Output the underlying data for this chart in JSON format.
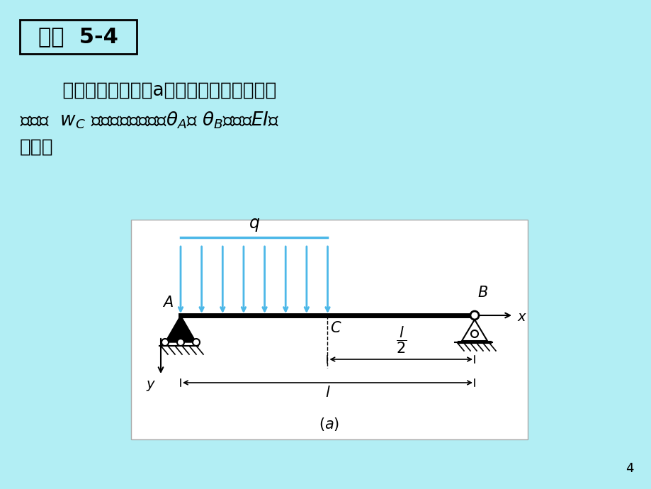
{
  "bg_color": "#b2eef4",
  "slide_bg": "#b2eef4",
  "box_color": "#b2eef4",
  "title_text": "例题  5-4",
  "title_fontsize": 22,
  "body_line1": "    试按叠加原理求图a所示简支梁的跨中截面",
  "body_line2": "的挠度  $w_C$ 和两端截面的转角$\\theta_A$及 $\\theta_B$。已知$EI$为",
  "body_line3": "常量。",
  "body_fontsize": 19,
  "diagram_bg": "#f0f8f8",
  "page_num": "4"
}
